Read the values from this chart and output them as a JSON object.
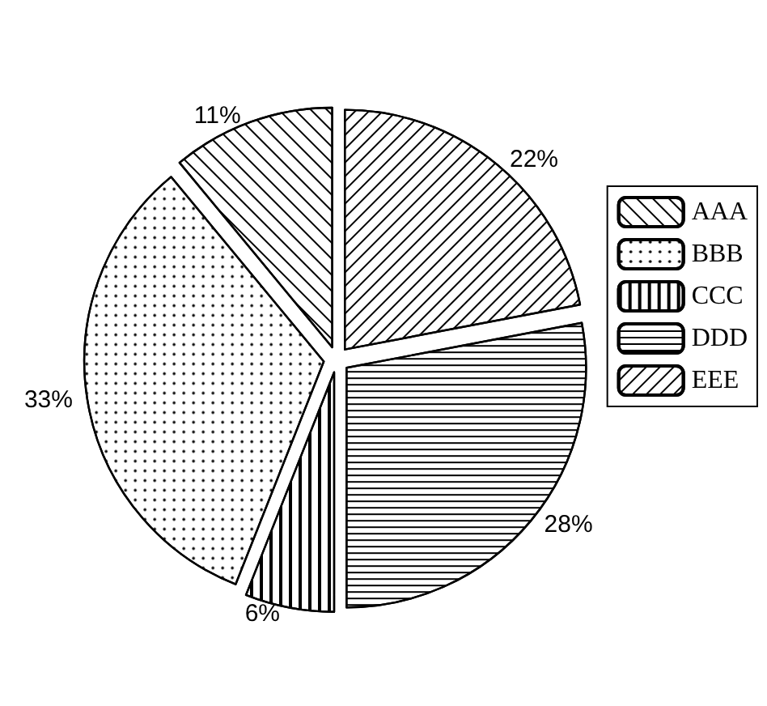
{
  "chart_data": {
    "type": "pie",
    "categories": [
      "AAA",
      "BBB",
      "CCC",
      "DDD",
      "EEE"
    ],
    "values": [
      11,
      33,
      6,
      28,
      22
    ],
    "colors": [
      "#ffffff",
      "#ffffff",
      "#ffffff",
      "#ffffff",
      "#ffffff"
    ],
    "value_labels": [
      "11%",
      "33%",
      "6%",
      "28%",
      "22%"
    ],
    "legend": "top right"
  }
}
